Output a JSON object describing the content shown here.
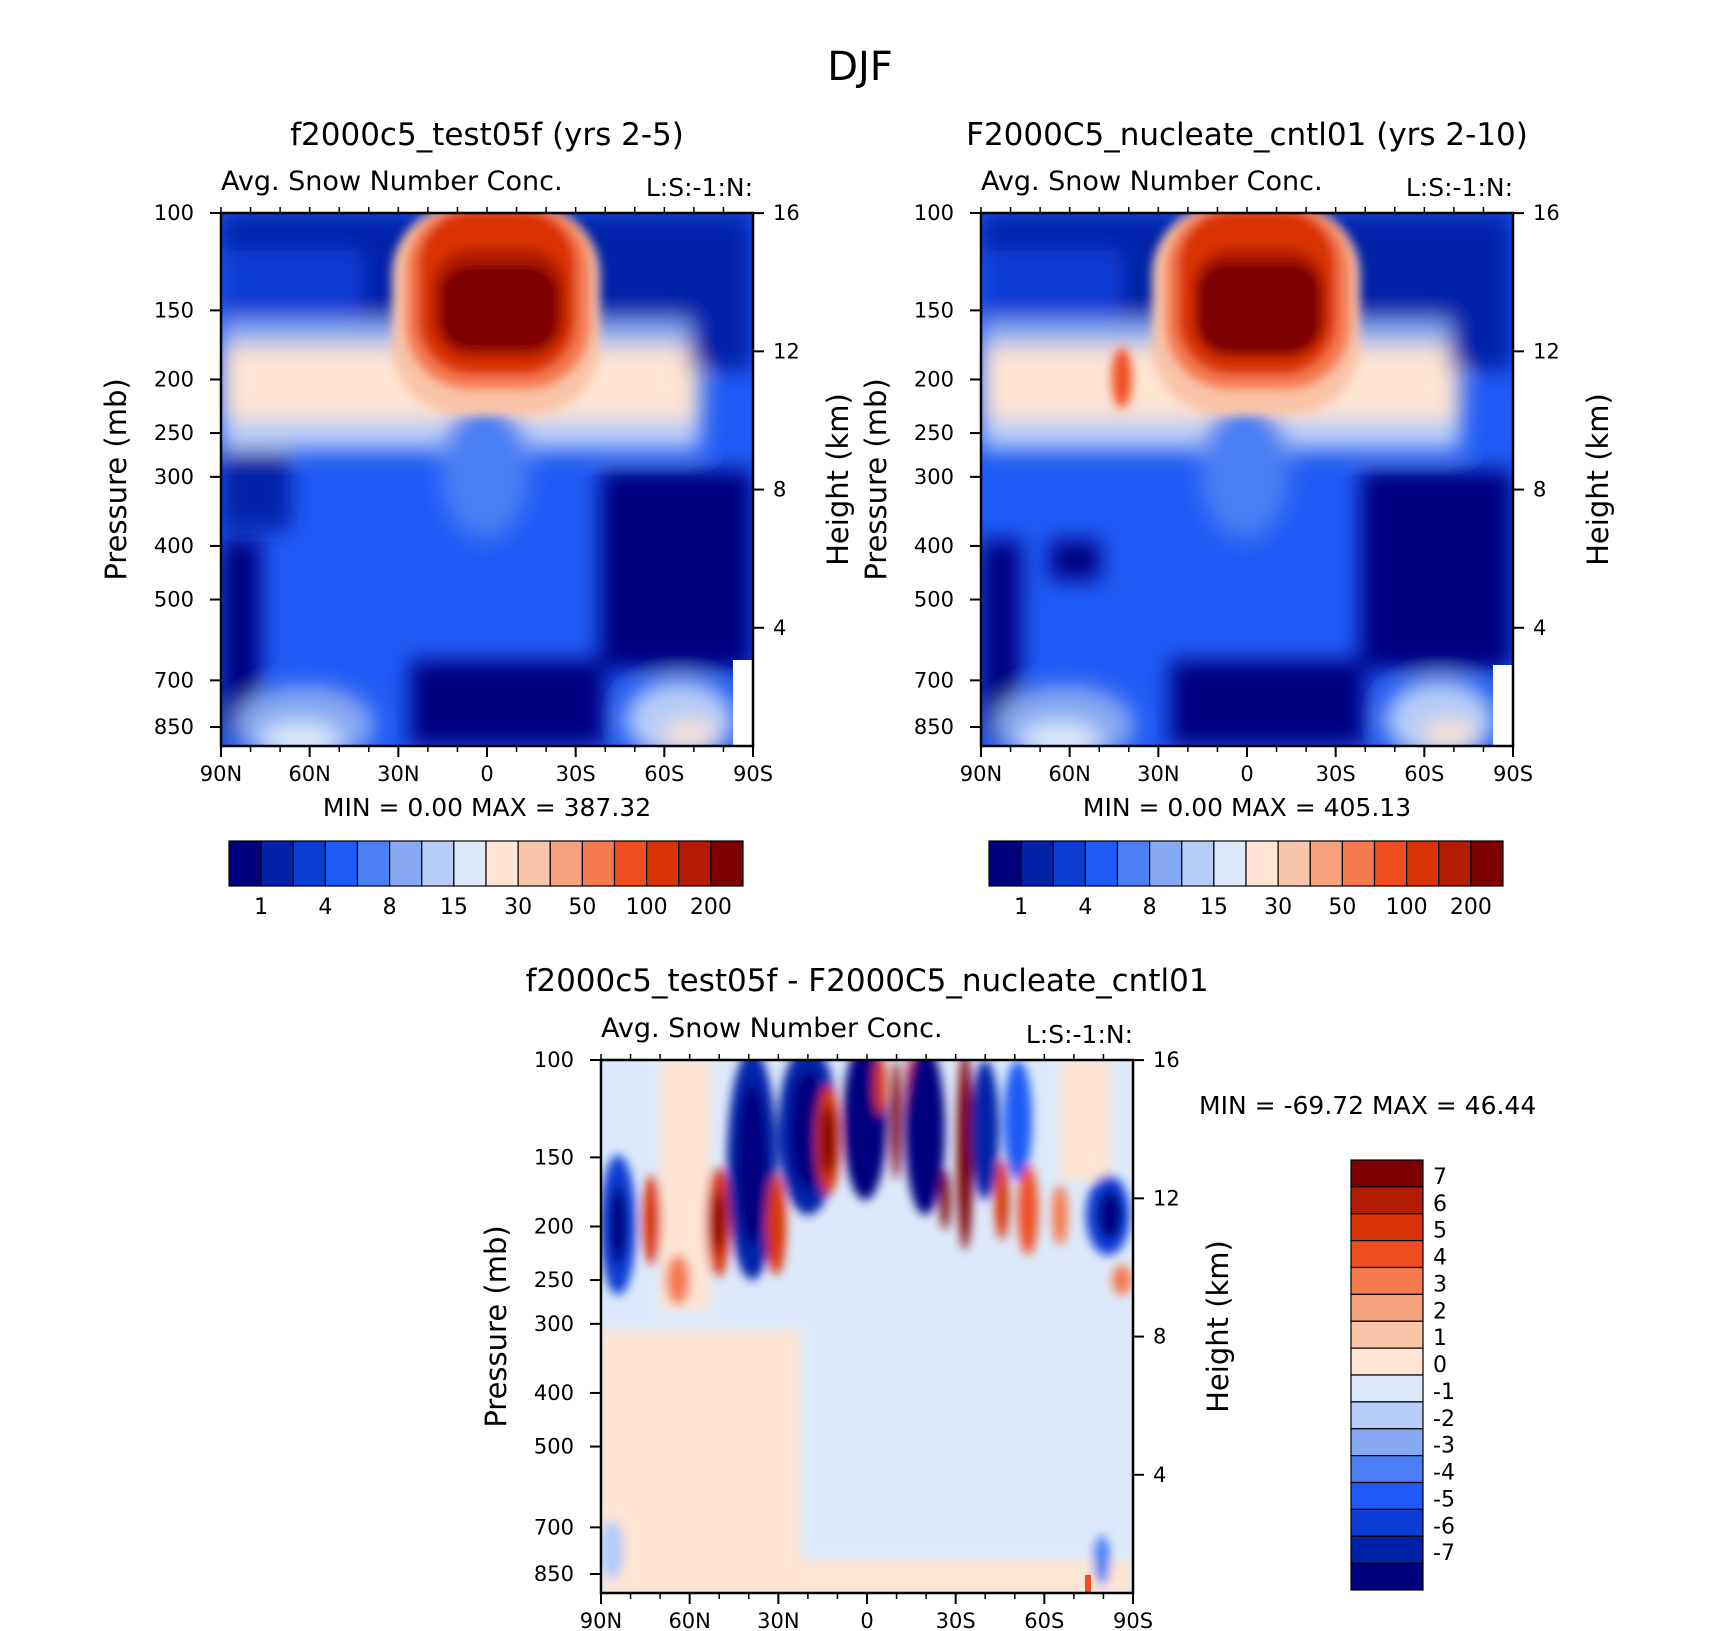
{
  "figure_title": "DJF",
  "chart_data": [
    {
      "type": "heatmap",
      "title": "f2000c5_test05f (yrs 2-5)",
      "subtitle": "Avg. Snow Number Conc.",
      "units_label": "L:S:-1:N:",
      "xlabel": "",
      "ylabel": "Pressure (mb)",
      "y2label": "Height (km)",
      "x_ticks": [
        "90N",
        "60N",
        "30N",
        "0",
        "30S",
        "60S",
        "90S"
      ],
      "y_ticks": [
        "100",
        "150",
        "200",
        "250",
        "300",
        "400",
        "500",
        "700",
        "850"
      ],
      "y2_ticks": [
        "16",
        "12",
        "8",
        "4"
      ],
      "stats_text": "MIN =     0.00   MAX =  387.32",
      "min": 0.0,
      "max": 387.32,
      "colorbar_labels": [
        "1",
        "4",
        "8",
        "15",
        "30",
        "50",
        "100",
        "200"
      ],
      "colorbar_colors": [
        "#00007f",
        "#0022a8",
        "#0c3ed6",
        "#1e5af5",
        "#4a80f3",
        "#87a9f2",
        "#b7ccf6",
        "#dde9fa",
        "#fde4d3",
        "#f9c5a8",
        "#f6a27c",
        "#f57a4e",
        "#f04d20",
        "#d93205",
        "#b21d04",
        "#7c0000"
      ]
    },
    {
      "type": "heatmap",
      "title": "F2000C5_nucleate_cntl01 (yrs 2-10)",
      "subtitle": "Avg. Snow Number Conc.",
      "units_label": "L:S:-1:N:",
      "xlabel": "",
      "ylabel": "Pressure (mb)",
      "y2label": "Height (km)",
      "x_ticks": [
        "90N",
        "60N",
        "30N",
        "0",
        "30S",
        "60S",
        "90S"
      ],
      "y_ticks": [
        "100",
        "150",
        "200",
        "250",
        "300",
        "400",
        "500",
        "700",
        "850"
      ],
      "y2_ticks": [
        "16",
        "12",
        "8",
        "4"
      ],
      "stats_text": "MIN =     0.00   MAX =  405.13",
      "min": 0.0,
      "max": 405.13,
      "colorbar_labels": [
        "1",
        "4",
        "8",
        "15",
        "30",
        "50",
        "100",
        "200"
      ],
      "colorbar_colors": [
        "#00007f",
        "#0022a8",
        "#0c3ed6",
        "#1e5af5",
        "#4a80f3",
        "#87a9f2",
        "#b7ccf6",
        "#dde9fa",
        "#fde4d3",
        "#f9c5a8",
        "#f6a27c",
        "#f57a4e",
        "#f04d20",
        "#d93205",
        "#b21d04",
        "#7c0000"
      ]
    },
    {
      "type": "heatmap",
      "title": "f2000c5_test05f - F2000C5_nucleate_cntl01",
      "subtitle": "Avg. Snow Number Conc.",
      "units_label": "L:S:-1:N:",
      "xlabel": "",
      "ylabel": "Pressure (mb)",
      "y2label": "Height (km)",
      "x_ticks": [
        "90N",
        "60N",
        "30N",
        "0",
        "30S",
        "60S",
        "90S"
      ],
      "y_ticks": [
        "100",
        "150",
        "200",
        "250",
        "300",
        "400",
        "500",
        "700",
        "850"
      ],
      "y2_ticks": [
        "16",
        "12",
        "8",
        "4"
      ],
      "stats_text": "MIN = -69.72   MAX =   46.44",
      "min": -69.72,
      "max": 46.44,
      "colorbar_labels": [
        "7",
        "6",
        "5",
        "4",
        "3",
        "2",
        "1",
        "0",
        "-1",
        "-2",
        "-3",
        "-4",
        "-5",
        "-6",
        "-7"
      ],
      "colorbar_colors": [
        "#7c0000",
        "#b21d04",
        "#d93205",
        "#f04d20",
        "#f57a4e",
        "#f6a27c",
        "#f9c5a8",
        "#fde4d3",
        "#dde9fa",
        "#b7ccf6",
        "#87a9f2",
        "#4a80f3",
        "#1e5af5",
        "#0c3ed6",
        "#0022a8",
        "#00007f"
      ]
    }
  ]
}
